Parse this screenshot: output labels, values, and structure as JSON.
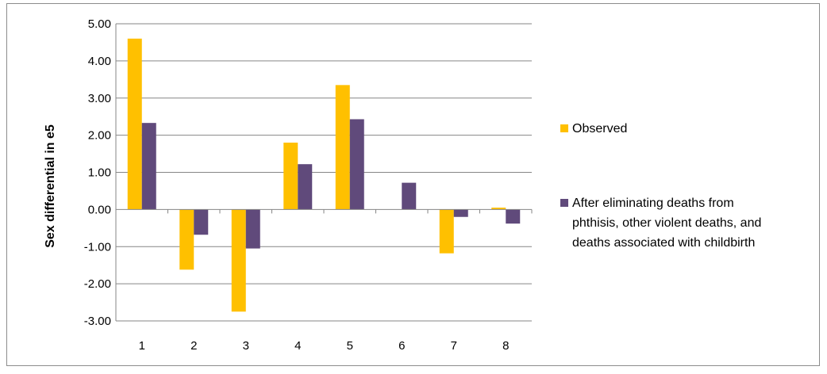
{
  "chart_data": {
    "type": "bar",
    "categories": [
      "1",
      "2",
      "3",
      "4",
      "5",
      "6",
      "7",
      "8"
    ],
    "series": [
      {
        "name": "Observed",
        "color": "#FFC000",
        "values": [
          4.6,
          -1.62,
          -2.75,
          1.8,
          3.35,
          0.0,
          -1.18,
          0.05
        ]
      },
      {
        "name": "After eliminating deaths from phthisis, other violent deaths, and deaths associated with childbirth",
        "color": "#604A7B",
        "values": [
          2.33,
          -0.68,
          -1.05,
          1.22,
          2.43,
          0.72,
          -0.2,
          -0.38
        ]
      }
    ],
    "legend_lines": [
      [
        "Observed"
      ],
      [
        "After eliminating deaths from",
        "phthisis, other violent deaths, and",
        "deaths associated with childbirth"
      ]
    ],
    "ylabel": "Sex differential in e5",
    "xlabel": "",
    "ylim": [
      -3,
      5
    ],
    "yticks": [
      "-3.00",
      "-2.00",
      "-1.00",
      "0.00",
      "1.00",
      "2.00",
      "3.00",
      "4.00",
      "5.00"
    ],
    "grid": true,
    "legend": "right"
  }
}
